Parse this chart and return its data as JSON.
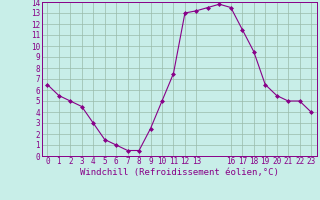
{
  "x": [
    0,
    1,
    2,
    3,
    4,
    5,
    6,
    7,
    8,
    9,
    10,
    11,
    12,
    13,
    14,
    15,
    16,
    17,
    18,
    19,
    20,
    21,
    22,
    23
  ],
  "y": [
    6.5,
    5.5,
    5.0,
    4.5,
    3.0,
    1.5,
    1.0,
    0.5,
    0.5,
    2.5,
    5.0,
    7.5,
    13.0,
    13.2,
    13.5,
    13.8,
    13.5,
    11.5,
    9.5,
    6.5,
    5.5,
    5.0,
    5.0,
    4.0
  ],
  "line_color": "#880088",
  "marker": "D",
  "markersize": 2,
  "linewidth": 0.8,
  "bg_color": "#c8eee8",
  "grid_color": "#99bbaa",
  "xlabel": "Windchill (Refroidissement éolien,°C)",
  "xlim_min": -0.5,
  "xlim_max": 23.5,
  "ylim_min": 0,
  "ylim_max": 14,
  "xticks": [
    0,
    1,
    2,
    3,
    4,
    5,
    6,
    7,
    8,
    9,
    10,
    11,
    12,
    13,
    16,
    17,
    18,
    19,
    20,
    21,
    22,
    23
  ],
  "yticks": [
    0,
    1,
    2,
    3,
    4,
    5,
    6,
    7,
    8,
    9,
    10,
    11,
    12,
    13,
    14
  ],
  "tick_color": "#880088",
  "label_color": "#880088",
  "xlabel_fontsize": 6.5,
  "tick_fontsize": 5.5
}
